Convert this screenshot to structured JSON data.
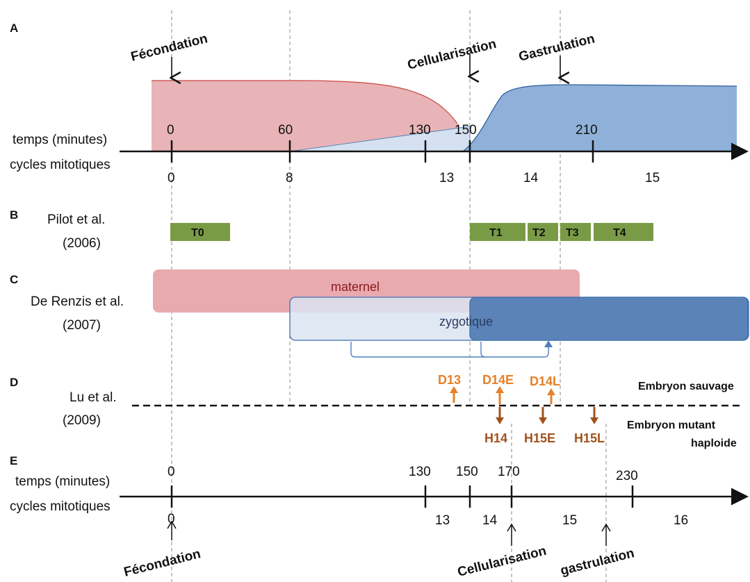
{
  "panels": {
    "A": "A",
    "B": "B",
    "C": "C",
    "D": "D",
    "E": "E"
  },
  "panel_a": {
    "time_label": "temps (minutes)",
    "cycle_label": "cycles mitotiques",
    "time_ticks": [
      "0",
      "60",
      "130",
      "150",
      "210"
    ],
    "cycle_ticks": [
      "0",
      "8",
      "13",
      "14",
      "15"
    ],
    "events": {
      "fecondation": "Fécondation",
      "cellularisation": "Cellularisation",
      "gastrulation": "Gastrulation"
    },
    "colors": {
      "maternal": "#e8b4b7",
      "maternal_edge": "#c9473f",
      "zygotic": "#8fb1d9",
      "zygotic_edge": "#2f5f9a",
      "zygotic_light": "#d5e1f0"
    }
  },
  "panel_b": {
    "author": "Pilot et al.",
    "year": "(2006)",
    "phases": [
      "T0",
      "T1",
      "T2",
      "T3",
      "T4"
    ],
    "phase_color": "#7a9b45"
  },
  "panel_c": {
    "author": "De Renzis et al.",
    "year": "(2007)",
    "maternal": "maternel",
    "zygotic": "zygotique",
    "colors": {
      "maternal": "#e8aaaf",
      "zygotic_light": "#dbe4f2",
      "zygotic_dark": "#5b83b8",
      "edge": "#3f6fae"
    }
  },
  "panel_d": {
    "author": "Lu et al.",
    "year": "(2009)",
    "wild": [
      "D13",
      "D14E",
      "D14L"
    ],
    "mutant": [
      "H14",
      "H15E",
      "H15L"
    ],
    "wild_label": "Embryon sauvage",
    "mutant_label_1": "Embryon mutant",
    "mutant_label_2": "haploide",
    "colors": {
      "wild": "#e4812a",
      "mutant": "#a1521c"
    }
  },
  "panel_e": {
    "time_label": "temps (minutes)",
    "cycle_label": "cycles mitotiques",
    "time_ticks": [
      "0",
      "130",
      "150",
      "170",
      "230"
    ],
    "cycle_ticks": [
      "0",
      "13",
      "14",
      "15",
      "16"
    ],
    "events": {
      "fecondation": "Fécondation",
      "cellularisation": "Cellularisation",
      "gastrulation": "gastrulation"
    }
  }
}
